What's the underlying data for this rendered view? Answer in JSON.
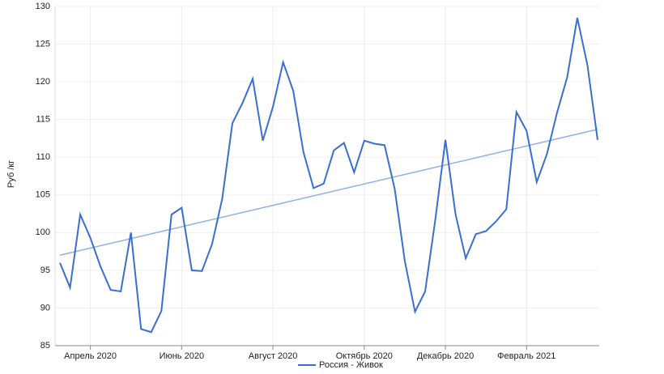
{
  "chart_data": {
    "type": "line",
    "y_label": "Руб /кг",
    "categories": [
      null,
      null,
      null,
      "Апрель 2020",
      null,
      null,
      null,
      null,
      null,
      null,
      null,
      null,
      "Июнь 2020",
      null,
      null,
      null,
      null,
      null,
      null,
      null,
      null,
      "Август 2020",
      null,
      null,
      null,
      null,
      null,
      null,
      null,
      null,
      "Октябрь 2020",
      null,
      null,
      null,
      null,
      null,
      null,
      null,
      "Декабрь 2020",
      null,
      null,
      null,
      null,
      null,
      null,
      null,
      "Февраль 2021",
      null,
      null,
      null,
      null,
      null,
      null,
      null
    ],
    "series": [
      {
        "name": "Россия - Живок",
        "color": "#3a6fd1",
        "values": [
          96,
          92.7,
          102.4,
          99.3,
          95.5,
          92.4,
          92.2,
          100,
          87.2,
          86.8,
          89.6,
          102.4,
          103.3,
          95,
          94.9,
          98.5,
          104.5,
          114.5,
          117.2,
          120.4,
          112.2,
          116.7,
          122.6,
          118.8,
          110.7,
          105.9,
          106.5,
          110.9,
          111.9,
          108,
          112.2,
          111.8,
          111.6,
          105.8,
          96.2,
          89.5,
          92.2,
          101.7,
          112.3,
          102.4,
          96.6,
          99.8,
          100.2,
          101.5,
          103.1,
          116,
          113.5,
          106.7,
          110.4,
          115.9,
          120.6,
          128.5,
          122.2,
          112.3
        ]
      }
    ],
    "trendline": {
      "color": "#8fb0e6",
      "values": [
        97,
        113.7
      ]
    },
    "ylim": [
      85,
      130
    ],
    "yticks": [
      85,
      90,
      95,
      100,
      105,
      110,
      115,
      120,
      125,
      130
    ],
    "grid": true,
    "legend": "bottom"
  }
}
